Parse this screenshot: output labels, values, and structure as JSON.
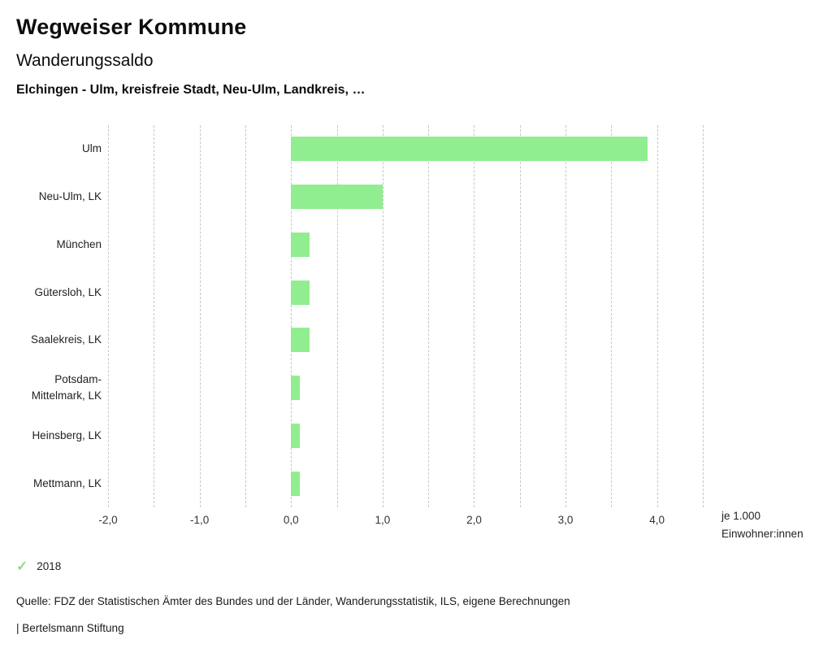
{
  "header": {
    "title": "Wegweiser Kommune",
    "subtitle": "Wanderungssaldo",
    "selection": "Elchingen - Ulm, kreisfreie Stadt, Neu-Ulm, Landkreis, …"
  },
  "chart_data": {
    "type": "bar",
    "orientation": "horizontal",
    "title": "Wanderungssaldo",
    "categories": [
      "Ulm",
      "Neu-Ulm, LK",
      "München",
      "Gütersloh, LK",
      "Saalekreis, LK",
      "Potsdam-Mittelmark, LK",
      "Heinsberg, LK",
      "Mettmann, LK"
    ],
    "series": [
      {
        "name": "2018",
        "values": [
          3.9,
          1.0,
          0.2,
          0.2,
          0.2,
          0.1,
          0.1,
          0.1
        ],
        "color": "#90ee90"
      }
    ],
    "xlabel": "je 1.000 Einwohner:innen",
    "xlim": [
      -2.0,
      4.5
    ],
    "grid_step": 0.5,
    "grid": "vertical-dashed",
    "x_ticks": [
      -2.0,
      -1.0,
      0.0,
      1.0,
      2.0,
      3.0,
      4.0
    ],
    "x_tick_labels": [
      "-2,0",
      "-1,0",
      "0,0",
      "1,0",
      "2,0",
      "3,0",
      "4,0"
    ],
    "legend_position": "bottom-left"
  },
  "footer": {
    "legend": {
      "icon": "check-icon",
      "icon_char": "✓",
      "icon_color": "#8ddc8d",
      "label": "2018"
    },
    "source": "Quelle: FDZ der Statistischen Ämter des Bundes und der Länder, Wanderungsstatistik, ILS, eigene Berechnungen",
    "branding": "| Bertelsmann Stiftung"
  }
}
